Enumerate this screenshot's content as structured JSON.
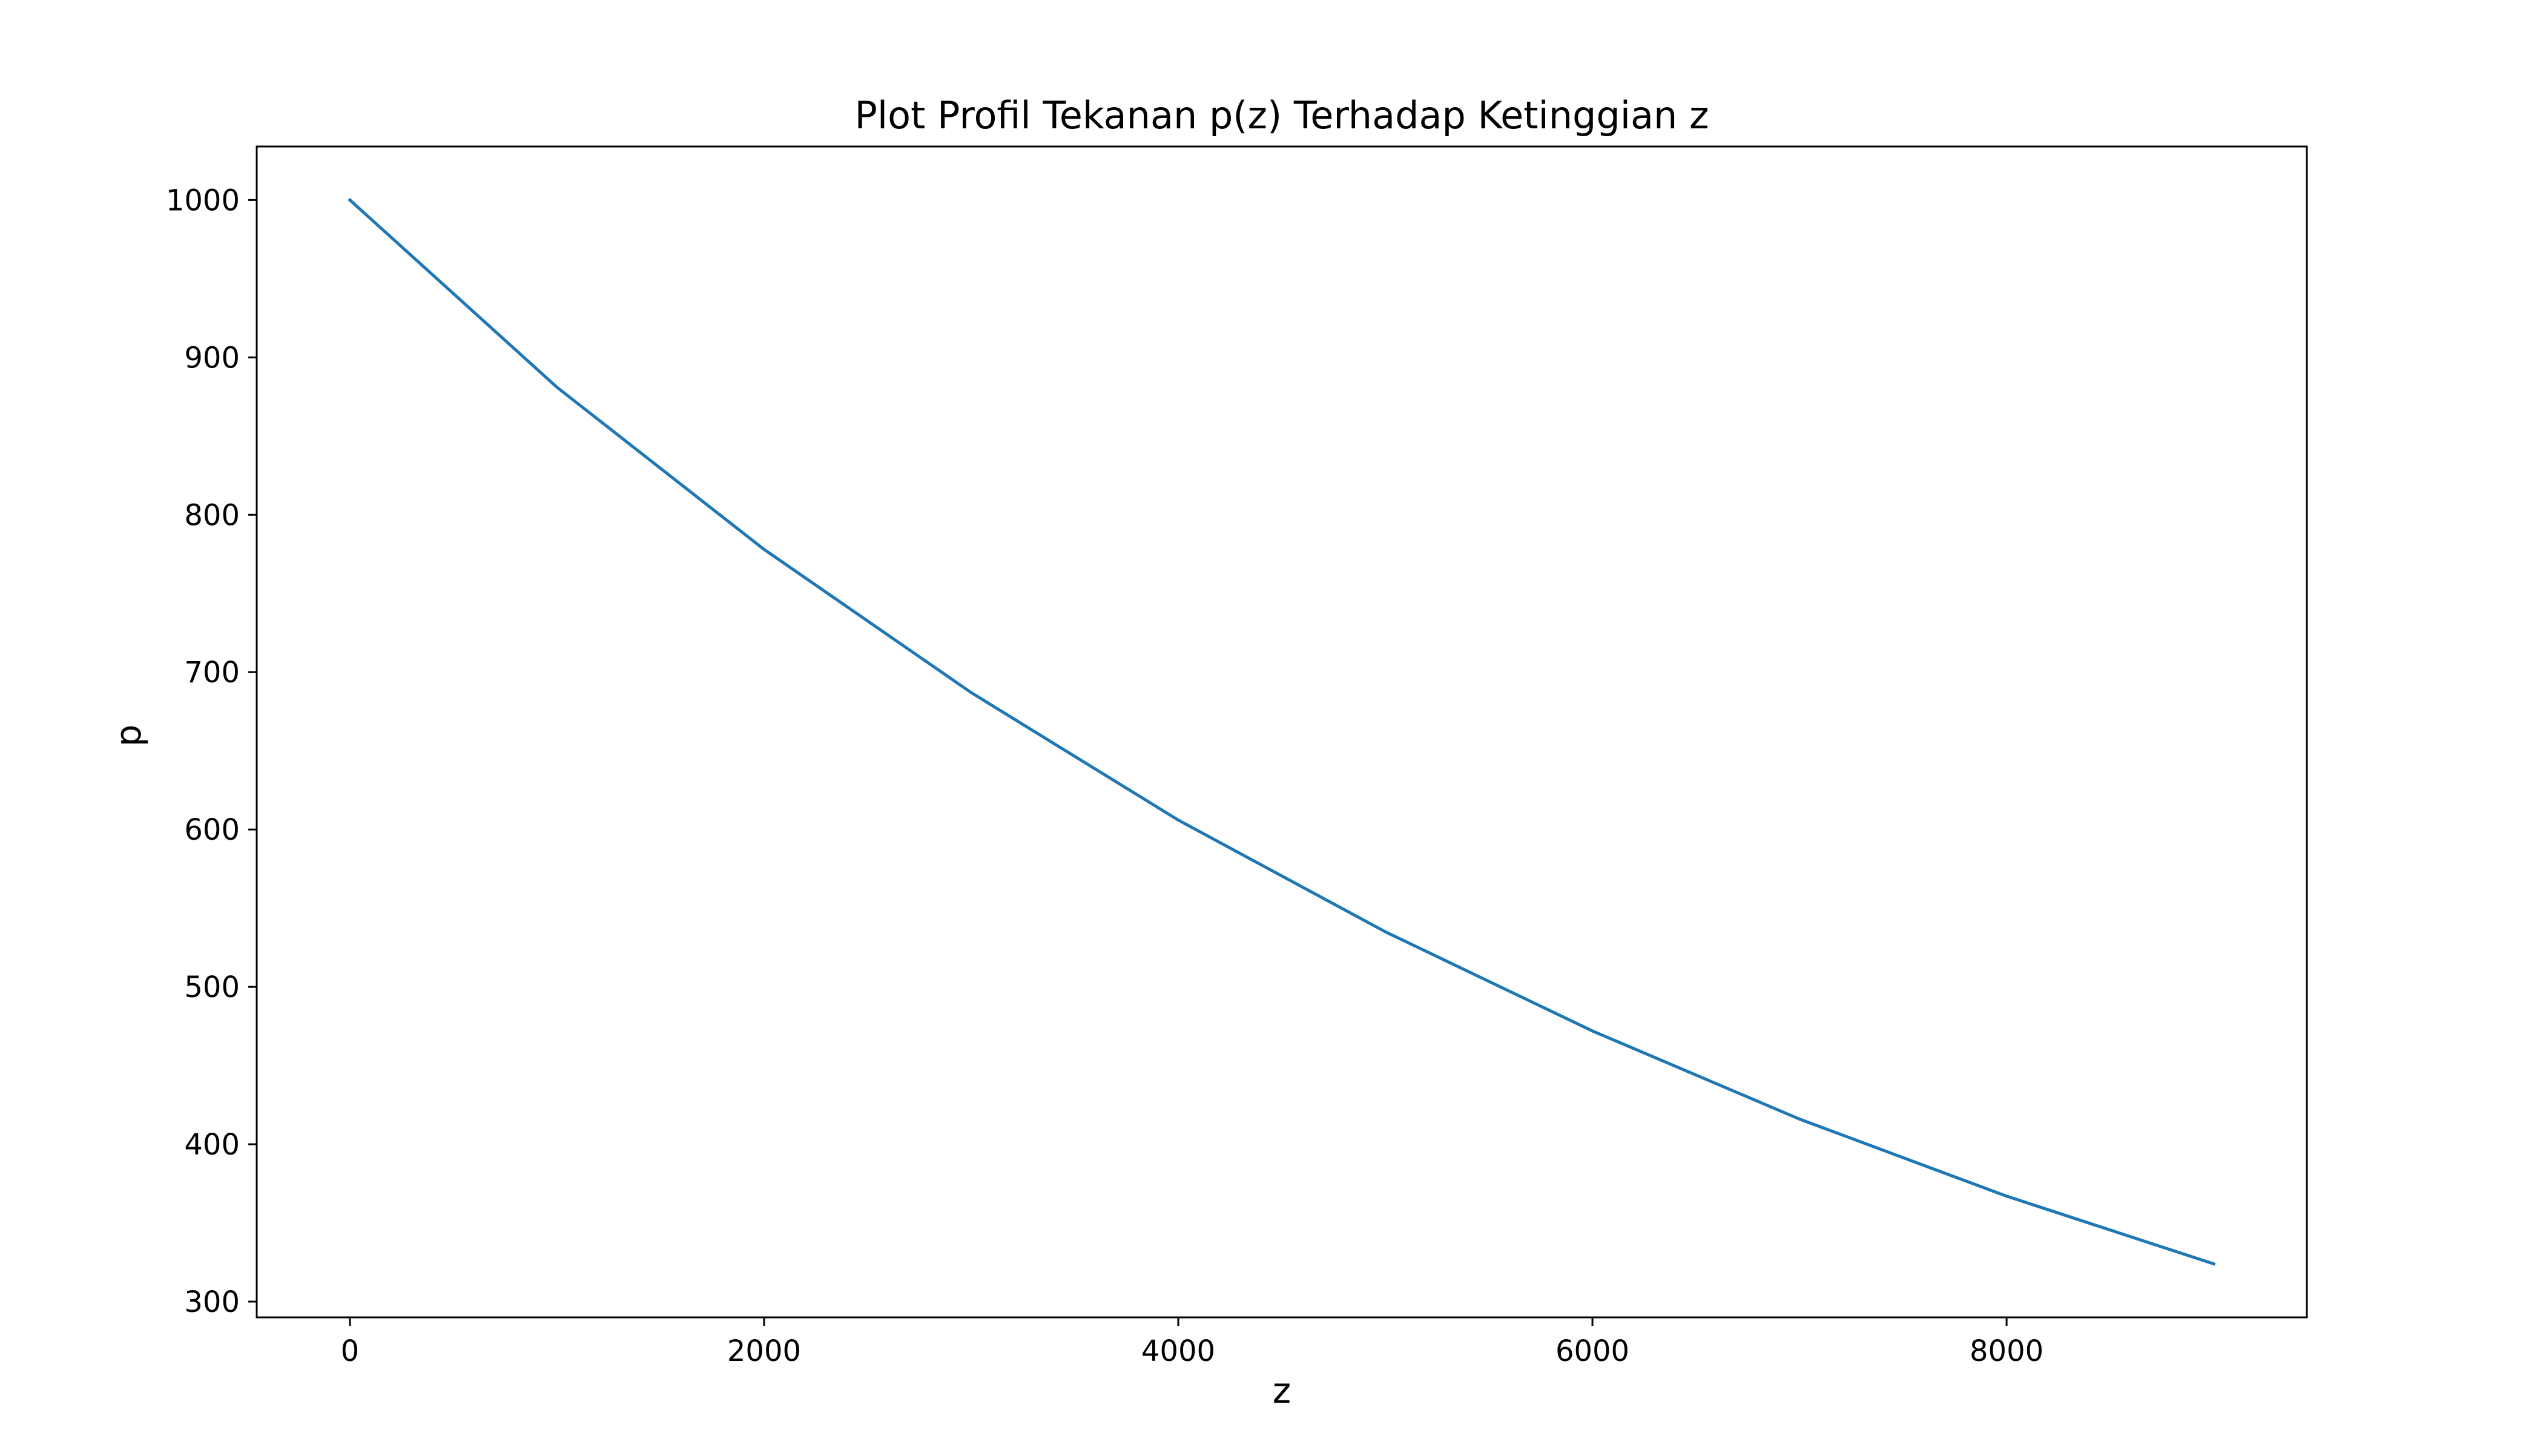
{
  "chart_data": {
    "type": "line",
    "title": "Plot Profil Tekanan p(z) Terhadap Ketinggian z",
    "xlabel": "z",
    "ylabel": "p",
    "x": [
      0,
      1000,
      2000,
      3000,
      4000,
      5000,
      6000,
      7000,
      8000,
      9000
    ],
    "series": [
      {
        "values": [
          1000,
          881,
          778,
          687,
          606,
          535,
          472,
          416,
          367,
          324
        ],
        "color": "#1f77b4"
      }
    ],
    "xlim": [
      -450,
      9450
    ],
    "ylim": [
      290,
      1034
    ],
    "xticks": [
      0,
      2000,
      4000,
      6000,
      8000
    ],
    "yticks": [
      300,
      400,
      500,
      600,
      700,
      800,
      900,
      1000
    ],
    "grid": false,
    "legend": "none"
  }
}
